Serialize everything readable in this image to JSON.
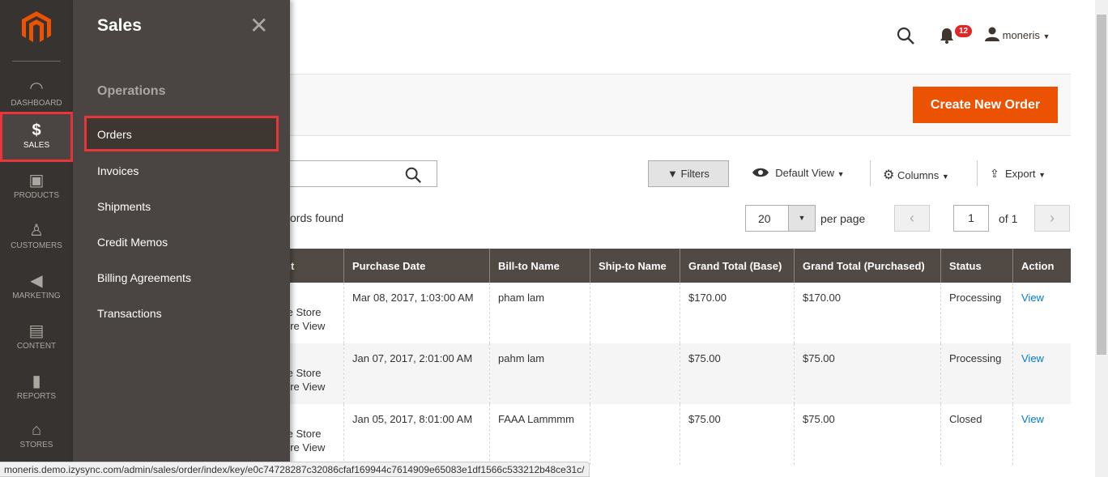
{
  "nav": {
    "items": [
      {
        "label": "DASHBOARD",
        "icon": "dashboard-icon"
      },
      {
        "label": "SALES",
        "icon": "dollar-icon"
      },
      {
        "label": "PRODUCTS",
        "icon": "box-icon"
      },
      {
        "label": "CUSTOMERS",
        "icon": "person-icon"
      },
      {
        "label": "MARKETING",
        "icon": "megaphone-icon"
      },
      {
        "label": "CONTENT",
        "icon": "layout-icon"
      },
      {
        "label": "REPORTS",
        "icon": "bar-chart-icon"
      },
      {
        "label": "STORES",
        "icon": "store-icon"
      }
    ],
    "active": "SALES"
  },
  "submenu": {
    "title": "Sales",
    "section": "Operations",
    "items": [
      "Orders",
      "Invoices",
      "Shipments",
      "Credit Memos",
      "Billing Agreements",
      "Transactions"
    ]
  },
  "header": {
    "notifications": "12",
    "user": "moneris"
  },
  "actions": {
    "create": "Create New Order"
  },
  "toolbar": {
    "filters": "Filters",
    "view": "Default View",
    "columns": "Columns",
    "export": "Export",
    "records": "ords found",
    "per_page_value": "20",
    "per_page": "per page",
    "page": "1",
    "of": "of 1"
  },
  "table": {
    "headers": [
      "nt",
      "Purchase Date",
      "Bill-to Name",
      "Ship-to Name",
      "Grand Total (Base)",
      "Grand Total (Purchased)",
      "Status",
      "Action"
    ],
    "rows": [
      {
        "pv1": "te Store",
        "pv2": "ore View",
        "date": "Mar 08, 2017, 1:03:00 AM",
        "bill": "pham lam",
        "ship": "",
        "base": "$170.00",
        "purchased": "$170.00",
        "status": "Processing",
        "action": "View"
      },
      {
        "pv1": "te Store",
        "pv2": "ore View",
        "date": "Jan 07, 2017, 2:01:00 AM",
        "bill": "pahm lam",
        "ship": "",
        "base": "$75.00",
        "purchased": "$75.00",
        "status": "Processing",
        "action": "View"
      },
      {
        "pv1": "te Store",
        "pv2": "ore View",
        "date": "Jan 05, 2017, 8:01:00 AM",
        "bill": "FAAA Lammmm",
        "ship": "",
        "base": "$75.00",
        "purchased": "$75.00",
        "status": "Closed",
        "action": "View"
      }
    ]
  },
  "statusbar": "moneris.demo.izysync.com/admin/sales/order/index/key/e0c74728287c32086cfaf169944c7614909e65083e1df1566c533212b48ce31c/",
  "colors": {
    "accent": "#eb5202",
    "nav": "#373330",
    "submenu": "#4a4542",
    "highlight": "#e8353a",
    "link": "#007bdb"
  }
}
